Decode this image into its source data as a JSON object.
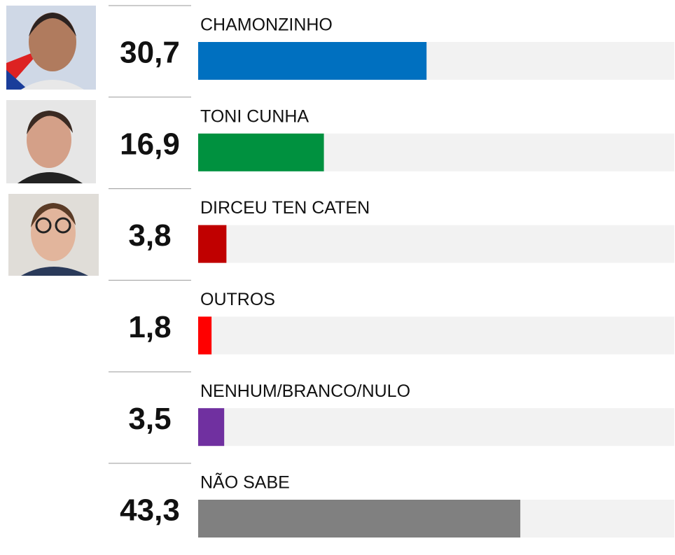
{
  "chart_data": {
    "type": "bar",
    "orientation": "horizontal",
    "categories": [
      "CHAMONZINHO",
      "TONI CUNHA",
      "DIRCEU TEN CATEN",
      "OUTROS",
      "NENHUM/BRANCO/NULO",
      "NÃO SABE"
    ],
    "values": [
      30.7,
      16.9,
      3.8,
      1.8,
      3.5,
      43.3
    ],
    "value_labels": [
      "30,7",
      "16,9",
      "3,8",
      "1,8",
      "3,5",
      "43,3"
    ],
    "colors": [
      "#0070c0",
      "#00913f",
      "#c00000",
      "#ff0000",
      "#7030a0",
      "#808080"
    ],
    "xlim": [
      0,
      64
    ]
  }
}
